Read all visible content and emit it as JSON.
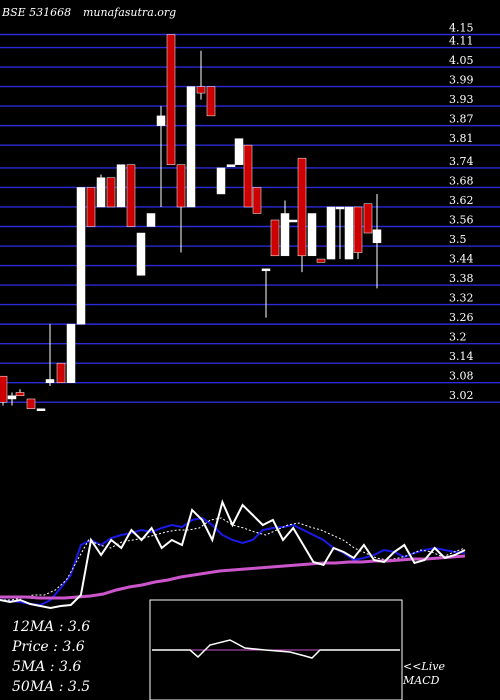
{
  "header": {
    "symbol": "BSE 531668",
    "site": "munafasutra.org"
  },
  "colors": {
    "background": "#000000",
    "grid": "#2b2bd6",
    "up": "#ffffff",
    "down": "#cc0000",
    "ma_fast": "#ffffff",
    "ma_mid": "#1a1ae6",
    "ma_slow": "#cc55cc",
    "macd_frame": "#ffffff"
  },
  "chart_data": [
    {
      "type": "candlestick",
      "ylim": [
        2.99,
        4.17
      ],
      "yticks": [
        "4.15",
        "4.11",
        "4.05",
        "3.99",
        "3.93",
        "3.87",
        "3.81",
        "3.74",
        "3.68",
        "3.62",
        "3.56",
        "3.5",
        "3.44",
        "3.38",
        "3.32",
        "3.26",
        "3.2",
        "3.14",
        "3.08",
        "3.02"
      ],
      "candles": [
        {
          "x": 3,
          "open": 3.1,
          "close": 3.02,
          "high": 3.1,
          "low": 3.01
        },
        {
          "x": 12,
          "open": 3.03,
          "close": 3.04,
          "high": 3.05,
          "low": 3.01
        },
        {
          "x": 20,
          "open": 3.05,
          "close": 3.04,
          "high": 3.06,
          "low": 3.04
        },
        {
          "x": 31,
          "open": 3.03,
          "close": 3.0,
          "high": 3.03,
          "low": 3.0
        },
        {
          "x": 41,
          "open": 3.0,
          "close": 3.0,
          "high": 3.0,
          "low": 3.0
        },
        {
          "x": 50,
          "open": 3.08,
          "close": 3.09,
          "high": 3.26,
          "low": 3.07
        },
        {
          "x": 61,
          "open": 3.14,
          "close": 3.08,
          "high": 3.14,
          "low": 3.08
        },
        {
          "x": 71,
          "open": 3.08,
          "close": 3.26,
          "high": 3.26,
          "low": 3.08
        },
        {
          "x": 81,
          "open": 3.26,
          "close": 3.68,
          "high": 3.68,
          "low": 3.26
        },
        {
          "x": 91,
          "open": 3.68,
          "close": 3.56,
          "high": 3.68,
          "low": 3.56
        },
        {
          "x": 101,
          "open": 3.62,
          "close": 3.71,
          "high": 3.72,
          "low": 3.62
        },
        {
          "x": 111,
          "open": 3.71,
          "close": 3.62,
          "high": 3.71,
          "low": 3.62
        },
        {
          "x": 121,
          "open": 3.62,
          "close": 3.75,
          "high": 3.75,
          "low": 3.62
        },
        {
          "x": 131,
          "open": 3.75,
          "close": 3.56,
          "high": 3.75,
          "low": 3.56
        },
        {
          "x": 141,
          "open": 3.41,
          "close": 3.54,
          "high": 3.54,
          "low": 3.41
        },
        {
          "x": 151,
          "open": 3.56,
          "close": 3.6,
          "high": 3.6,
          "low": 3.56
        },
        {
          "x": 161,
          "open": 3.87,
          "close": 3.9,
          "high": 3.93,
          "low": 3.62
        },
        {
          "x": 171,
          "open": 4.15,
          "close": 3.75,
          "high": 4.15,
          "low": 3.75
        },
        {
          "x": 181,
          "open": 3.75,
          "close": 3.62,
          "high": 3.75,
          "low": 3.48
        },
        {
          "x": 191,
          "open": 3.62,
          "close": 3.99,
          "high": 3.99,
          "low": 3.62
        },
        {
          "x": 201,
          "open": 3.99,
          "close": 3.97,
          "high": 4.1,
          "low": 3.95
        },
        {
          "x": 211,
          "open": 3.99,
          "close": 3.9,
          "high": 3.99,
          "low": 3.9
        },
        {
          "x": 221,
          "open": 3.66,
          "close": 3.74,
          "high": 3.74,
          "low": 3.66
        },
        {
          "x": 231,
          "open": 3.75,
          "close": 3.75,
          "high": 3.75,
          "low": 3.75
        },
        {
          "x": 239,
          "open": 3.75,
          "close": 3.83,
          "high": 3.83,
          "low": 3.75
        },
        {
          "x": 248,
          "open": 3.81,
          "close": 3.62,
          "high": 3.81,
          "low": 3.62
        },
        {
          "x": 257,
          "open": 3.68,
          "close": 3.6,
          "high": 3.68,
          "low": 3.6
        },
        {
          "x": 266,
          "open": 3.43,
          "close": 3.43,
          "high": 3.43,
          "low": 3.28
        },
        {
          "x": 275,
          "open": 3.58,
          "close": 3.47,
          "high": 3.58,
          "low": 3.47
        },
        {
          "x": 285,
          "open": 3.47,
          "close": 3.6,
          "high": 3.64,
          "low": 3.47
        },
        {
          "x": 293,
          "open": 3.58,
          "close": 3.58,
          "high": 3.58,
          "low": 3.58
        },
        {
          "x": 302,
          "open": 3.77,
          "close": 3.47,
          "high": 3.77,
          "low": 3.42
        },
        {
          "x": 312,
          "open": 3.47,
          "close": 3.6,
          "high": 3.6,
          "low": 3.47
        },
        {
          "x": 321,
          "open": 3.46,
          "close": 3.45,
          "high": 3.46,
          "low": 3.45
        },
        {
          "x": 331,
          "open": 3.46,
          "close": 3.62,
          "high": 3.62,
          "low": 3.46
        },
        {
          "x": 340,
          "open": 3.62,
          "close": 3.62,
          "high": 3.62,
          "low": 3.46
        },
        {
          "x": 349,
          "open": 3.46,
          "close": 3.62,
          "high": 3.62,
          "low": 3.46
        },
        {
          "x": 358,
          "open": 3.62,
          "close": 3.48,
          "high": 3.62,
          "low": 3.46
        },
        {
          "x": 368,
          "open": 3.63,
          "close": 3.54,
          "high": 3.63,
          "low": 3.54
        },
        {
          "x": 377,
          "open": 3.51,
          "close": 3.55,
          "high": 3.66,
          "low": 3.37
        }
      ]
    },
    {
      "type": "line",
      "series": [
        {
          "name": "12MA",
          "values": [
            600,
            601,
            602,
            604,
            605,
            600,
            588,
            575,
            545,
            540,
            545,
            538,
            535,
            533,
            530,
            532,
            528,
            525,
            527,
            520,
            518,
            525,
            535,
            540,
            543,
            540,
            530,
            528,
            527,
            525,
            530,
            535,
            540,
            548,
            553,
            560,
            558,
            555,
            550,
            552,
            557,
            553,
            550,
            548,
            550,
            552,
            553
          ]
        },
        {
          "name": "5MA",
          "values": [
            600,
            600,
            598,
            595,
            595,
            590,
            580,
            560,
            540,
            545,
            548,
            542,
            540,
            538,
            535,
            532,
            530,
            530,
            528,
            520,
            518,
            525,
            528,
            532,
            535,
            530,
            525,
            523,
            527,
            530,
            535,
            540,
            548,
            553,
            558,
            560,
            558,
            555,
            550,
            552,
            557,
            552,
            548
          ]
        },
        {
          "name": "50MA",
          "values": [
            597,
            597,
            597,
            598,
            598,
            598,
            597,
            596,
            594,
            590,
            587,
            585,
            582,
            580,
            577,
            575,
            573,
            571,
            570,
            569,
            568,
            567,
            566,
            565,
            564,
            563,
            563,
            562,
            562,
            561,
            561,
            560,
            559,
            559,
            558,
            557,
            556
          ]
        }
      ]
    }
  ],
  "legend": {
    "ma12": "12MA : 3.6",
    "price": "Price  : 3.6",
    "ma5": "5MA : 3.6",
    "ma50": "50MA : 3.5",
    "live": "<<Live",
    "macd": "MACD"
  }
}
